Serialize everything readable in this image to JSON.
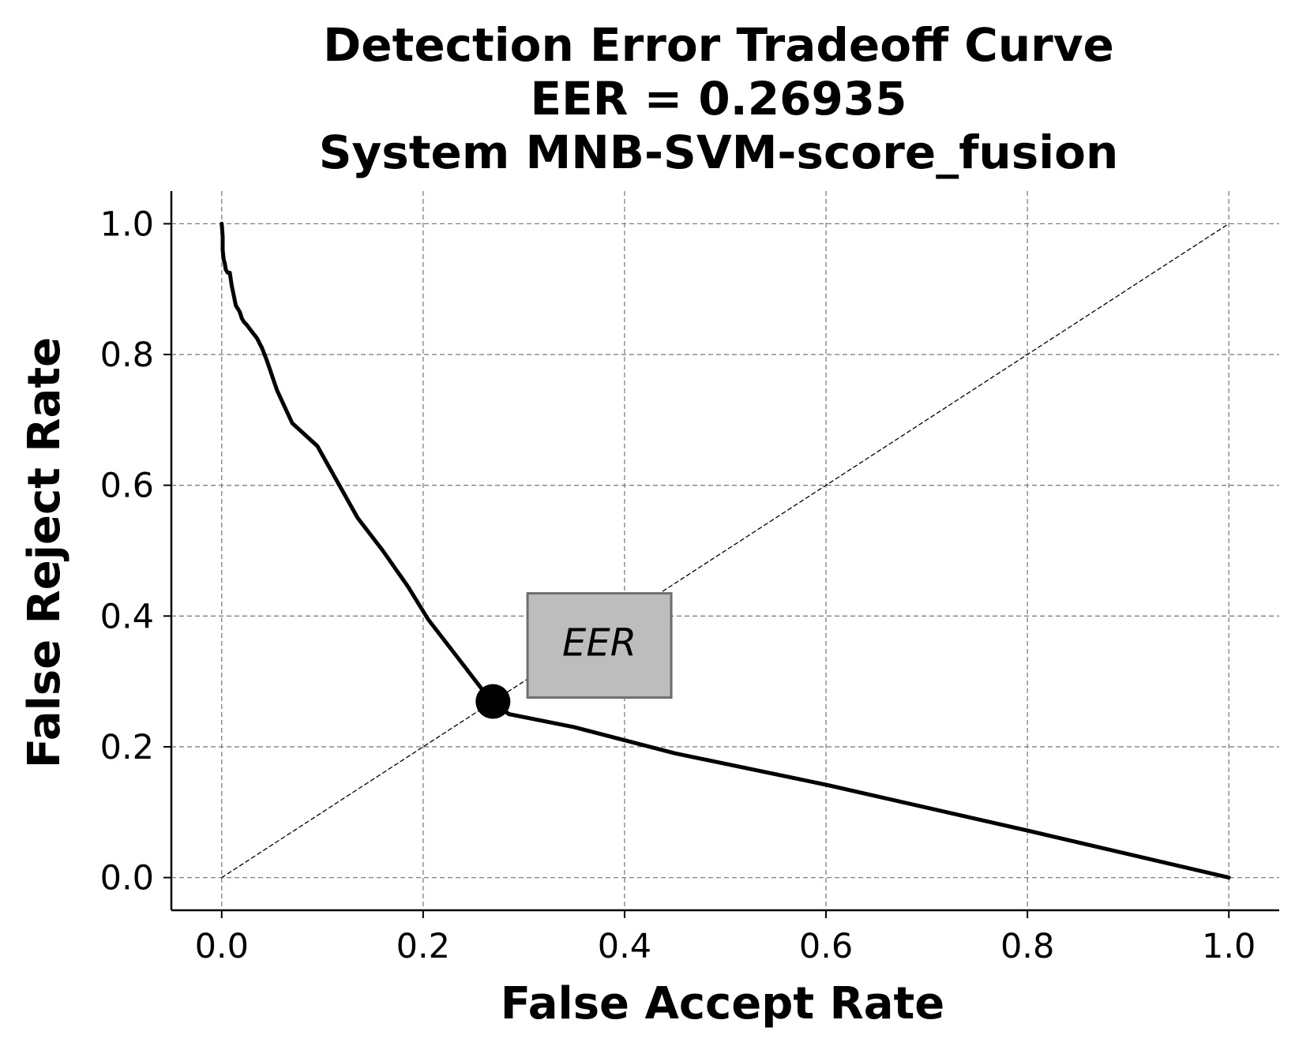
{
  "chart_data": {
    "type": "line",
    "title_lines": [
      "Detection Error Tradeoff Curve",
      "EER = 0.26935",
      "System MNB-SVM-score_fusion"
    ],
    "xlabel": "False Accept Rate",
    "ylabel": "False Reject Rate",
    "xlim": [
      -0.05,
      1.05
    ],
    "ylim": [
      -0.05,
      1.05
    ],
    "xticks": [
      0.0,
      0.2,
      0.4,
      0.6,
      0.8,
      1.0
    ],
    "yticks": [
      0.0,
      0.2,
      0.4,
      0.6,
      0.8,
      1.0
    ],
    "xtick_labels": [
      "0.0",
      "0.2",
      "0.4",
      "0.6",
      "0.8",
      "1.0"
    ],
    "ytick_labels": [
      "0.0",
      "0.2",
      "0.4",
      "0.6",
      "0.8",
      "1.0"
    ],
    "grid": true,
    "series": [
      {
        "color": "#000000",
        "style": "solid",
        "x": [
          0.0,
          0.001,
          0.001,
          0.002,
          0.003,
          0.004,
          0.006,
          0.008,
          0.01,
          0.012,
          0.014,
          0.016,
          0.018,
          0.02,
          0.022,
          0.025,
          0.03,
          0.035,
          0.04,
          0.045,
          0.055,
          0.07,
          0.095,
          0.115,
          0.135,
          0.16,
          0.185,
          0.205,
          0.24,
          0.26,
          0.26935,
          0.285,
          0.35,
          0.45,
          0.6,
          0.8,
          1.0
        ],
        "y": [
          1.0,
          0.98,
          0.96,
          0.945,
          0.94,
          0.93,
          0.925,
          0.925,
          0.905,
          0.89,
          0.875,
          0.87,
          0.865,
          0.855,
          0.85,
          0.845,
          0.835,
          0.825,
          0.81,
          0.79,
          0.745,
          0.695,
          0.66,
          0.605,
          0.55,
          0.5,
          0.445,
          0.395,
          0.325,
          0.285,
          0.26935,
          0.25,
          0.23,
          0.19,
          0.142,
          0.072,
          0.0
        ]
      },
      {
        "color": "#000000",
        "style": "dashed",
        "x": [
          0.0,
          1.0
        ],
        "y": [
          0.0,
          1.0
        ]
      }
    ],
    "marker": {
      "x": 0.26935,
      "y": 0.26935,
      "color": "#000000"
    },
    "annotation": {
      "text": "EER",
      "x": 0.375,
      "y": 0.355,
      "box_fill": "#bdbdbd",
      "box_edge": "#6e6e6e"
    }
  }
}
